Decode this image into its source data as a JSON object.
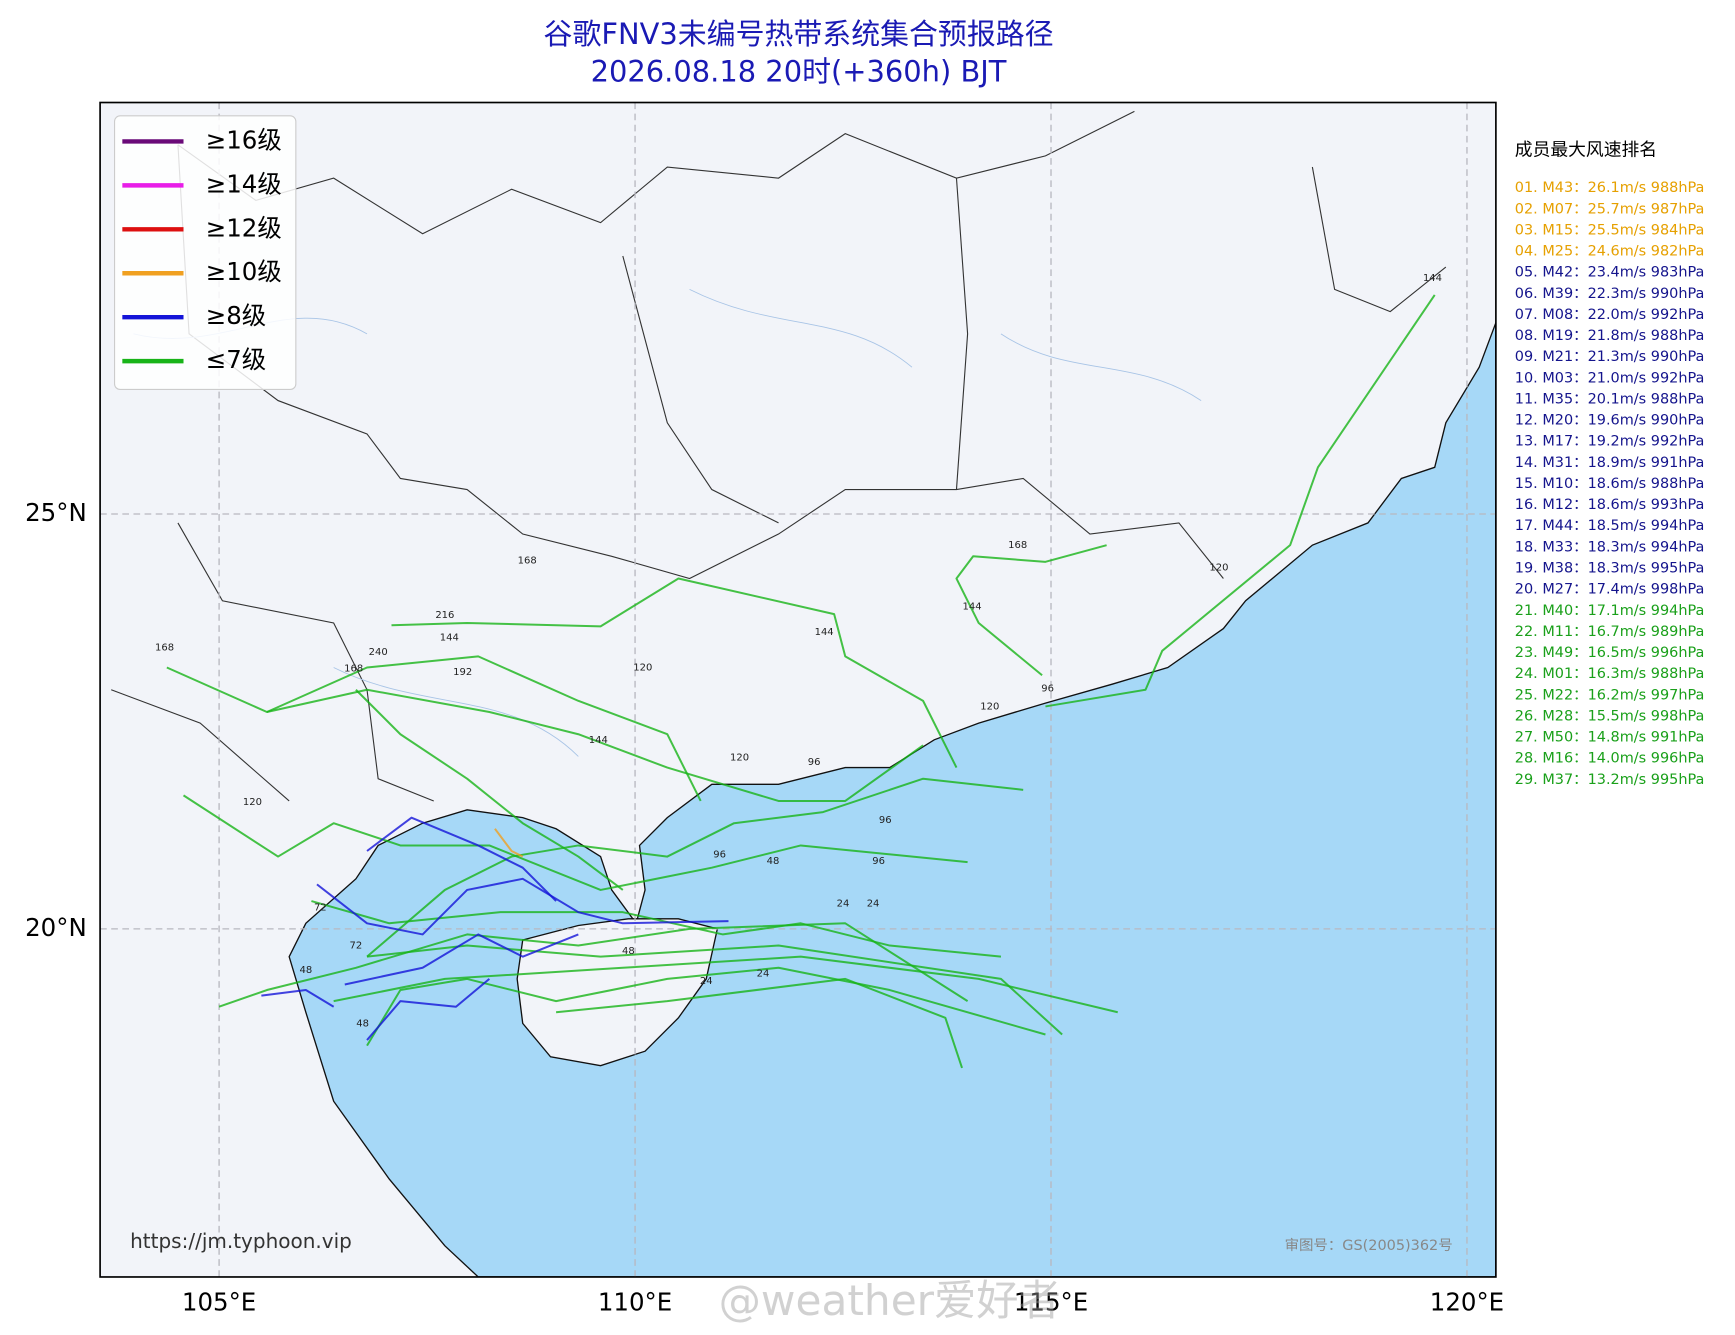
{
  "title": [
    "谷歌FNV3未编号热带系统集合预报路径",
    "2026.08.18 20时(+360h) BJT"
  ],
  "legend": [
    {
      "name": "≥16级",
      "color": "#6a0a78"
    },
    {
      "name": "≥14级",
      "color": "#e81ee8"
    },
    {
      "name": "≥12级",
      "color": "#dd1010"
    },
    {
      "name": "≥10级",
      "color": "#f0a020"
    },
    {
      "name": "≥8级",
      "color": "#1414d8"
    },
    {
      "name": "≤7级",
      "color": "#18b418"
    }
  ],
  "lon_labels": [
    "105°E",
    "110°E",
    "115°E",
    "120°E"
  ],
  "lat_labels": [
    "25°N",
    "20°N"
  ],
  "ranking": {
    "title": "成员最大风速排名",
    "groups": [
      {
        "color": "#e6a000",
        "items": [
          "01. M43：26.1m/s 988hPa",
          "02. M07：25.7m/s 987hPa",
          "03. M15：25.5m/s 984hPa",
          "04. M25：24.6m/s 982hPa"
        ]
      },
      {
        "color": "#14148c",
        "items": [
          "05. M42：23.4m/s 983hPa",
          "06. M39：22.3m/s 990hPa",
          "07. M08：22.0m/s 992hPa",
          "08. M19：21.8m/s 988hPa",
          "09. M21：21.3m/s 990hPa",
          "10. M03：21.0m/s 992hPa",
          "11. M35：20.1m/s 988hPa",
          "12. M20：19.6m/s 990hPa",
          "13. M17：19.2m/s 992hPa",
          "14. M31：18.9m/s 991hPa",
          "15. M10：18.6m/s 988hPa",
          "16. M12：18.6m/s 993hPa",
          "17. M44：18.5m/s 994hPa",
          "18. M33：18.3m/s 994hPa",
          "19. M38：18.3m/s 995hPa",
          "20. M27：17.4m/s 998hPa"
        ]
      },
      {
        "color": "#1aa01a",
        "items": [
          "21. M40：17.1m/s 994hPa",
          "22. M11：16.7m/s 989hPa",
          "23. M49：16.5m/s 996hPa",
          "24. M01：16.3m/s 988hPa",
          "25. M22：16.2m/s 997hPa",
          "26. M28：15.5m/s 998hPa",
          "27. M50：14.8m/s 991hPa",
          "28. M16：14.0m/s 996hPa",
          "29. M37：13.2m/s 995hPa"
        ]
      }
    ]
  },
  "track_labels": [
    "144",
    "168",
    "120",
    "168",
    "144",
    "216",
    "144",
    "240",
    "168",
    "192",
    "120",
    "168",
    "144",
    "144",
    "120",
    "96",
    "120",
    "120",
    "96",
    "96",
    "96",
    "72",
    "48",
    "48",
    "24",
    "24",
    "24",
    "24",
    "48",
    "72",
    "48",
    "96"
  ],
  "site": "https://jm.typhoon.vip",
  "approval": "审图号：GS(2005)362号",
  "watermark": "@weather爱好者"
}
